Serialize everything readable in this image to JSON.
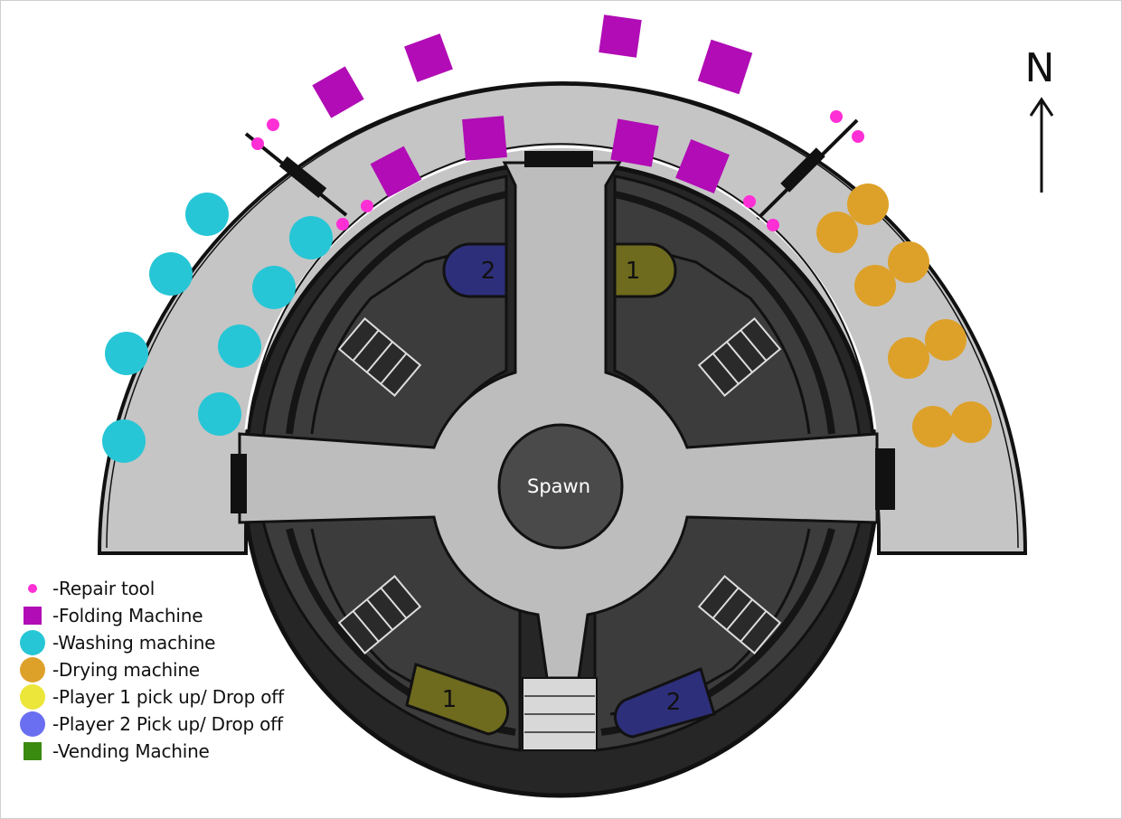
{
  "map": {
    "spawn_label": "Spawn",
    "north_label": "N",
    "colors": {
      "repair": "#ff2fd6",
      "folding": "#b10cb5",
      "washing": "#27c6d6",
      "drying": "#dda12a",
      "player1": "#6e6a1e",
      "player2": "#2e2f7a",
      "hall": "#bdbdbd",
      "room": "#3c3c3c",
      "ring": "#262626",
      "annex": "#c5c5c5"
    },
    "drop_labels": {
      "player1": "1",
      "player2": "2"
    }
  },
  "legend": {
    "items": [
      {
        "label": "-Repair tool",
        "shape": "dot",
        "color": "#ff2fd6"
      },
      {
        "label": "-Folding Machine",
        "shape": "square",
        "color": "#b10cb5"
      },
      {
        "label": "-Washing machine",
        "shape": "circle",
        "color": "#27c6d6"
      },
      {
        "label": "-Drying machine",
        "shape": "circle",
        "color": "#dda12a"
      },
      {
        "label": "-Player 1 pick up/ Drop off",
        "shape": "circle",
        "color": "#ece63a"
      },
      {
        "label": "-Player 2 Pick up/ Drop off",
        "shape": "circle",
        "color": "#6a6ef0"
      },
      {
        "label": "-Vending Machine",
        "shape": "square",
        "color": "#3a8a10"
      }
    ]
  }
}
